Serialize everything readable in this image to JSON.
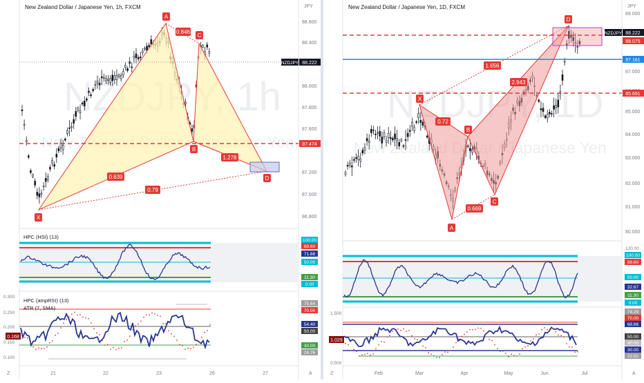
{
  "left": {
    "title": "New Zealand Dollar / Japanese Yen, 1h, FXCM",
    "currency": "JPY",
    "watermark": "NZDJPY, 1h",
    "watermark_sub": "New Zealand Dollar / Japanese Yen",
    "price_ticks": [
      "88.600",
      "88.400",
      "88.000",
      "87.800",
      "87.600",
      "87.200",
      "87.000",
      "86.800"
    ],
    "last_price": {
      "symbol": "NZDJPY",
      "value": "88.222"
    },
    "level_label": "87.474",
    "points": {
      "X": "X",
      "A": "A",
      "B": "B",
      "C": "C",
      "D": "D"
    },
    "ratios": {
      "xb": "0.639",
      "ac": "0.846",
      "bd": "1.278",
      "xd": "0.79"
    },
    "rsi_panel": {
      "label": "HPC (HSI) (13)",
      "tags": [
        "100.00",
        "88.60",
        "71.88",
        "50.00",
        "11.30",
        "0.00"
      ],
      "tag_colors": [
        "#00bcd4",
        "#e53935",
        "#283593",
        "#00bcd4",
        "#43a047",
        "#00bcd4"
      ]
    },
    "amp_panel": {
      "label1": "HPC (ampRSI) (13)",
      "label2": "ATR (7, SMA)",
      "ticks": [
        "0.300",
        "0.250",
        "0.200",
        "0.150",
        "0.100"
      ],
      "tags": [
        "75.64",
        "70.00",
        "54.40",
        "50.00",
        "30.00",
        "26.76"
      ],
      "tag_colors": [
        "#9e9e9e",
        "#e53935",
        "#283593",
        "#424242",
        "#43a047",
        "#9e9e9e"
      ],
      "atr_value": "0.168"
    },
    "time_axis": [
      "21",
      "22",
      "23",
      "26",
      "27"
    ],
    "corner_left": "Z",
    "corner_right": "A"
  },
  "right": {
    "title": "New Zealand Dollar / Japanese Yen, 1D, FXCM",
    "currency": "JPY",
    "watermark": "NZDJPY, 1D",
    "watermark_sub": "New Zealand Dollar / Japanese Yen",
    "price_ticks": [
      "89.000",
      "87.000",
      "86.000",
      "85.000",
      "84.000",
      "83.000",
      "82.000",
      "81.000",
      "80.000"
    ],
    "last_price": {
      "symbol": "NZDJPY",
      "value": "88.222"
    },
    "level_labels": [
      "88.075",
      "87.161",
      "85.691"
    ],
    "points": {
      "X": "X",
      "A": "A",
      "B": "B",
      "C": "C",
      "D": "D"
    },
    "ratios": {
      "xb": "0.72",
      "ac": "0.669",
      "bd": "2.943",
      "xd": "1.656"
    },
    "rsi_panel": {
      "ticks": [
        "120.00"
      ],
      "tags": [
        "100.00",
        "88.60",
        "50.00",
        "32.67",
        "11.30",
        "0.00"
      ],
      "tag_colors": [
        "#00bcd4",
        "#e53935",
        "#00bcd4",
        "#283593",
        "#43a047",
        "#00bcd4"
      ]
    },
    "amp_panel": {
      "ticks": [
        "1.500",
        "0.500"
      ],
      "tags": [
        "74.29",
        "70.00",
        "68.66",
        "50.00",
        "40.00",
        "30.00",
        "22.82"
      ],
      "tag_colors": [
        "#9e9e9e",
        "#e53935",
        "#283593",
        "#424242",
        "#bdbdbd",
        "#283593",
        "#9e9e9e"
      ],
      "atr_value": "1.029"
    },
    "time_axis": [
      "Feb",
      "Mar",
      "Apr",
      "May",
      "Jun",
      "Jul"
    ],
    "corner_left": "Z",
    "corner_right": "A"
  },
  "colors": {
    "yellow_fill": "#fff2b3",
    "yellow_stroke": "#e53935",
    "red_fill": "#ef9a9a",
    "point_label": "#e53935",
    "rsi_line": "#283593",
    "blue_level": "#1e88e5",
    "red_level": "#e53935"
  }
}
